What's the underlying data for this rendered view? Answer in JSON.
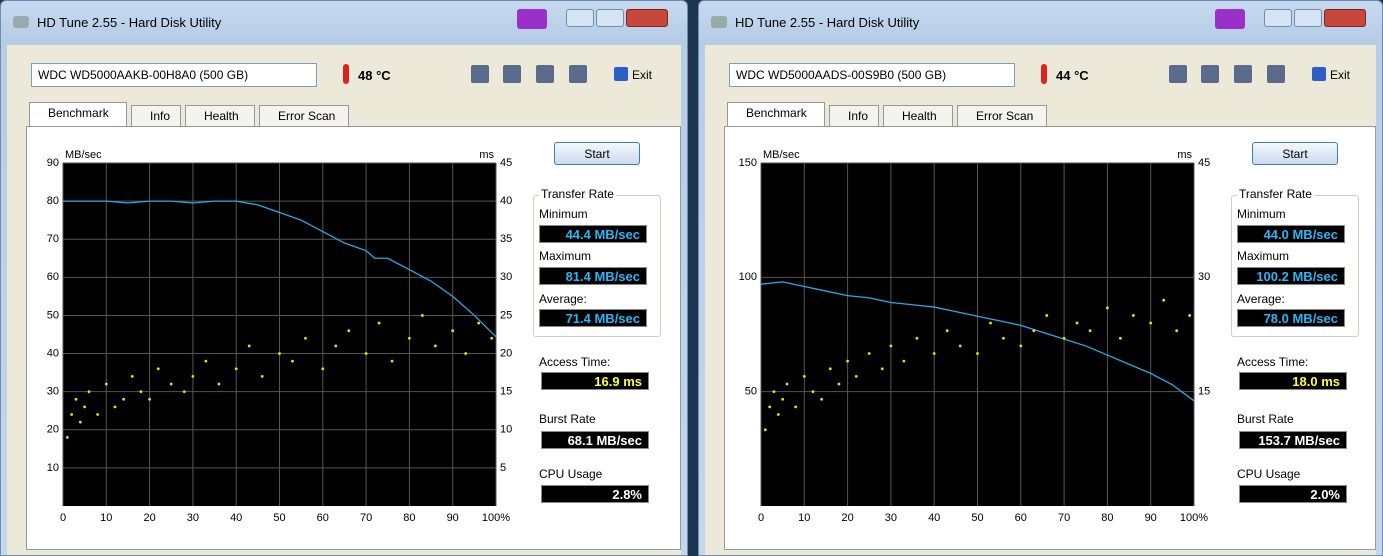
{
  "windows": [
    {
      "title": "HD Tune 2.55 - Hard Disk Utility",
      "drive": "WDC WD5000AAKB-00H8A0 (500 GB)",
      "temperature": "48 °C",
      "exit": "Exit",
      "tabs": [
        "Benchmark",
        "Info",
        "Health",
        "Error Scan"
      ],
      "start": "Start",
      "stats": {
        "group": "Transfer Rate",
        "minimum_label": "Minimum",
        "minimum": "44.4 MB/sec",
        "maximum_label": "Maximum",
        "maximum": "81.4 MB/sec",
        "average_label": "Average:",
        "average": "71.4 MB/sec",
        "access_label": "Access Time:",
        "access": "16.9 ms",
        "burst_label": "Burst Rate",
        "burst": "68.1 MB/sec",
        "cpu_label": "CPU Usage",
        "cpu": "2.8%"
      },
      "chart_data": {
        "type": "line",
        "y_label": "MB/sec",
        "y2_label": "ms",
        "xlim": [
          0,
          100
        ],
        "xticks": [
          0,
          10,
          20,
          30,
          40,
          50,
          60,
          70,
          80,
          90,
          {
            "value": 100,
            "label": "100%"
          }
        ],
        "ylim": [
          0,
          90
        ],
        "yticks": [
          10,
          20,
          30,
          40,
          50,
          60,
          70,
          80,
          90
        ],
        "y2lim": [
          0,
          45
        ],
        "y2ticks": [
          5,
          10,
          15,
          20,
          25,
          30,
          35,
          40,
          45
        ],
        "grid": true,
        "x": [
          0,
          5,
          10,
          15,
          20,
          25,
          30,
          35,
          40,
          45,
          50,
          55,
          60,
          65,
          70,
          72,
          75,
          80,
          85,
          90,
          95,
          100
        ],
        "series": [
          {
            "color": "#2aa8e8",
            "values": [
              80,
              80,
              80,
              79.5,
              80,
              80,
              79.5,
              80,
              80,
              79,
              77,
              75,
              72,
              69,
              67,
              65,
              65,
              62,
              59,
              55,
              50,
              44.4
            ]
          },
          {
            "color": "#e6e600",
            "axis": "y2",
            "x": [
              1,
              2,
              3,
              4,
              5,
              6,
              8,
              10,
              12,
              14,
              16,
              18,
              20,
              22,
              25,
              28,
              30,
              33,
              36,
              40,
              43,
              46,
              50,
              53,
              56,
              60,
              63,
              66,
              70,
              73,
              76,
              80,
              83,
              86,
              90,
              93,
              96,
              99
            ],
            "values": [
              9,
              12,
              14,
              11,
              13,
              15,
              12,
              16,
              13,
              14,
              17,
              15,
              14,
              18,
              16,
              15,
              17,
              19,
              16,
              18,
              21,
              17,
              20,
              19,
              22,
              18,
              21,
              23,
              20,
              24,
              19,
              22,
              25,
              21,
              23,
              20,
              24,
              22
            ]
          }
        ]
      }
    },
    {
      "title": "HD Tune 2.55 - Hard Disk Utility",
      "drive": "WDC WD5000AADS-00S9B0 (500 GB)",
      "temperature": "44 °C",
      "exit": "Exit",
      "tabs": [
        "Benchmark",
        "Info",
        "Health",
        "Error Scan"
      ],
      "start": "Start",
      "stats": {
        "group": "Transfer Rate",
        "minimum_label": "Minimum",
        "minimum": "44.0 MB/sec",
        "maximum_label": "Maximum",
        "maximum": "100.2 MB/sec",
        "average_label": "Average:",
        "average": "78.0 MB/sec",
        "access_label": "Access Time:",
        "access": "18.0 ms",
        "burst_label": "Burst Rate",
        "burst": "153.7 MB/sec",
        "cpu_label": "CPU Usage",
        "cpu": "2.0%"
      },
      "chart_data": {
        "type": "line",
        "y_label": "MB/sec",
        "y2_label": "ms",
        "xlim": [
          0,
          100
        ],
        "xticks": [
          0,
          10,
          20,
          30,
          40,
          50,
          60,
          70,
          80,
          90,
          {
            "value": 100,
            "label": "100%"
          }
        ],
        "ylim": [
          0,
          150
        ],
        "yticks": [
          50,
          100,
          150
        ],
        "y2lim": [
          0,
          45
        ],
        "y2ticks": [
          15,
          30,
          45
        ],
        "grid": true,
        "x": [
          0,
          5,
          10,
          15,
          20,
          25,
          30,
          35,
          40,
          45,
          50,
          55,
          60,
          65,
          70,
          75,
          80,
          85,
          90,
          95,
          100
        ],
        "series": [
          {
            "color": "#2aa8e8",
            "values": [
              97,
              98,
              96,
              94,
              92,
              91,
              89,
              88,
              87,
              85,
              83,
              81,
              79,
              76,
              73,
              70,
              66,
              62,
              58,
              53,
              46
            ]
          },
          {
            "color": "#e6e600",
            "axis": "y2",
            "x": [
              1,
              2,
              3,
              4,
              5,
              6,
              8,
              10,
              12,
              14,
              16,
              18,
              20,
              22,
              25,
              28,
              30,
              33,
              36,
              40,
              43,
              46,
              50,
              53,
              56,
              60,
              63,
              66,
              70,
              73,
              76,
              80,
              83,
              86,
              90,
              93,
              96,
              99
            ],
            "values": [
              10,
              13,
              15,
              12,
              14,
              16,
              13,
              17,
              15,
              14,
              18,
              16,
              19,
              17,
              20,
              18,
              21,
              19,
              22,
              20,
              23,
              21,
              20,
              24,
              22,
              21,
              23,
              25,
              22,
              24,
              23,
              26,
              22,
              25,
              24,
              27,
              23,
              25
            ]
          }
        ]
      }
    }
  ]
}
